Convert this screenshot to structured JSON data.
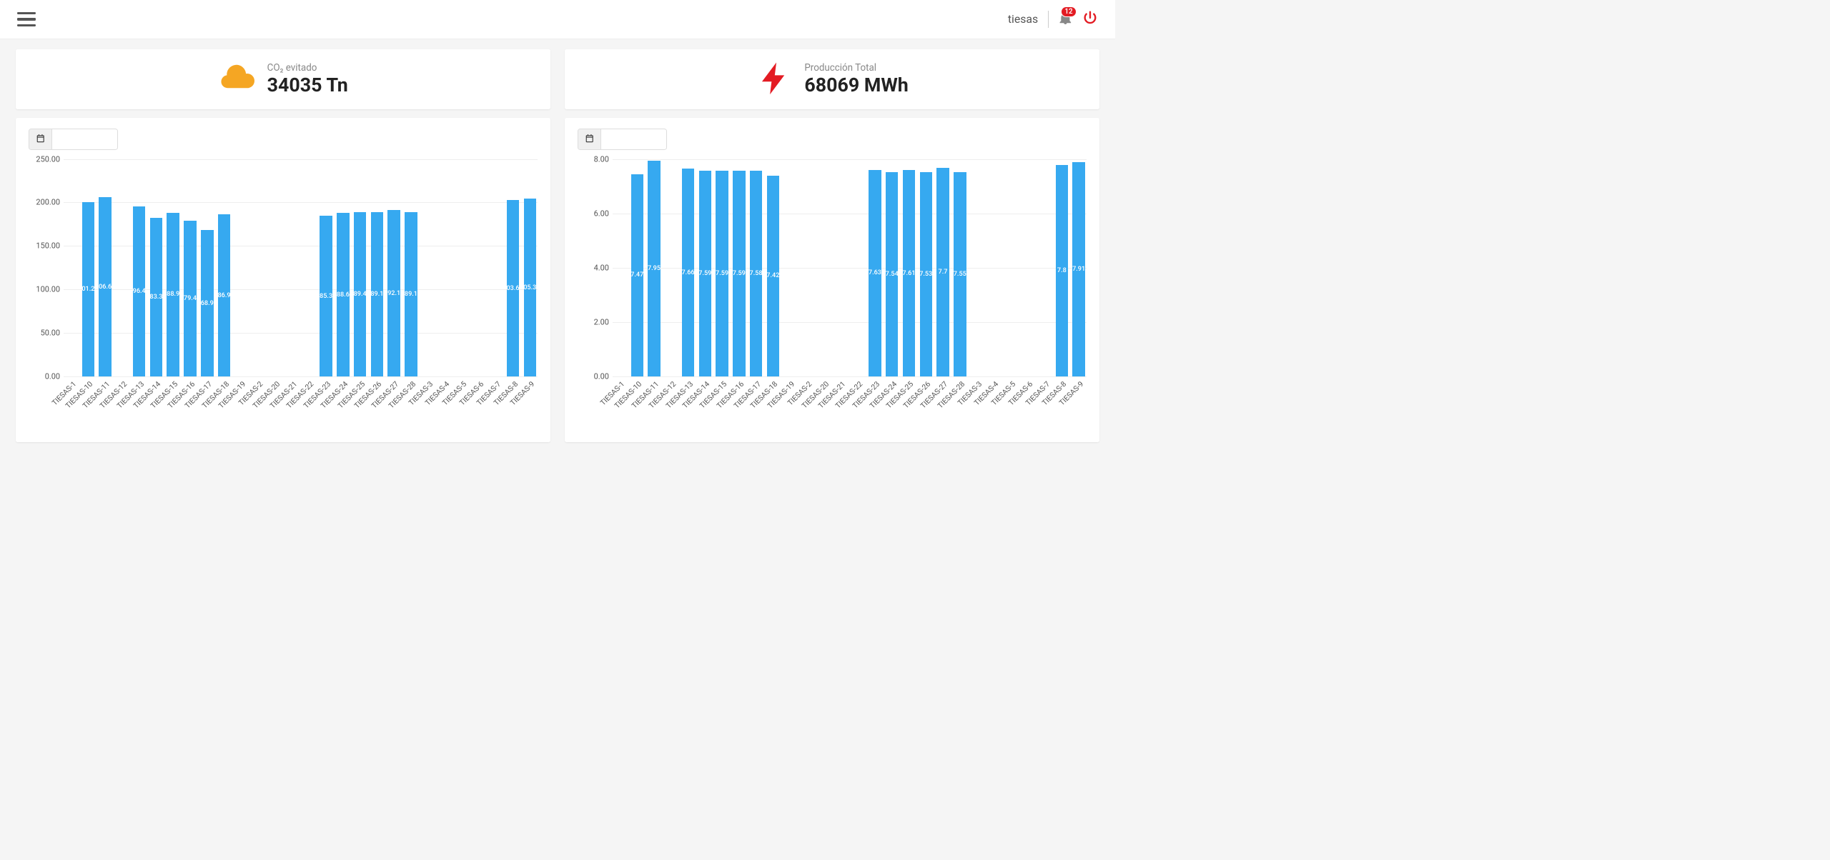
{
  "header": {
    "user_label": "tiesas",
    "notification_count": "12"
  },
  "kpi": {
    "co2": {
      "label": "CO₂ evitado",
      "value": "34035 Tn",
      "icon_color": "#f5a623"
    },
    "production": {
      "label": "Producción Total",
      "value": "68069 MWh",
      "icon_color": "#e31b23"
    }
  },
  "colors": {
    "bar": "#36a9f0",
    "grid": "#eeeeee",
    "text": "#555555",
    "bar_label": "#ffffff",
    "header_bg": "#ffffff",
    "page_bg": "#f5f5f5"
  },
  "chart_left": {
    "type": "bar",
    "ylim": [
      0,
      250
    ],
    "yticks": [
      0,
      50,
      100,
      150,
      200,
      250
    ],
    "ytick_labels": [
      "0.00",
      "50.00",
      "100.00",
      "150.00",
      "200.00",
      "250.00"
    ],
    "categories": [
      "TIESAS-1",
      "TIESAS-10",
      "TIESAS-11",
      "TIESAS-12",
      "TIESAS-13",
      "TIESAS-14",
      "TIESAS-15",
      "TIESAS-16",
      "TIESAS-17",
      "TIESAS-18",
      "TIESAS-19",
      "TIESAS-2",
      "TIESAS-20",
      "TIESAS-21",
      "TIESAS-22",
      "TIESAS-23",
      "TIESAS-24",
      "TIESAS-25",
      "TIESAS-26",
      "TIESAS-27",
      "TIESAS-28",
      "TIESAS-3",
      "TIESAS-4",
      "TIESAS-5",
      "TIESAS-6",
      "TIESAS-7",
      "TIESAS-8",
      "TIESAS-9"
    ],
    "values": [
      0,
      201.2,
      206.6,
      0,
      196.4,
      183.3,
      188.9,
      179.4,
      168.9,
      186.9,
      0,
      0,
      0,
      0,
      0,
      185.3,
      188.6,
      189.4,
      189.1,
      192.1,
      189.1,
      0,
      0,
      0,
      0,
      0,
      203.6,
      205.3
    ],
    "bar_labels": [
      null,
      "01.2",
      "06.6",
      null,
      "96.4",
      "83.3",
      "88.9",
      "79.4",
      "68.9",
      "86.9",
      null,
      null,
      null,
      null,
      null,
      "85.3",
      "88.6",
      "89.4",
      "89.1",
      "92.1",
      "89.1",
      null,
      null,
      null,
      null,
      null,
      "03.6",
      "05.3"
    ],
    "bar_width": 0.82
  },
  "chart_right": {
    "type": "bar",
    "ylim": [
      0,
      8
    ],
    "yticks": [
      0,
      2,
      4,
      6,
      8
    ],
    "ytick_labels": [
      "0.00",
      "2.00",
      "4.00",
      "6.00",
      "8.00"
    ],
    "categories": [
      "TIESAS-1",
      "TIESAS-10",
      "TIESAS-11",
      "TIESAS-12",
      "TIESAS-13",
      "TIESAS-14",
      "TIESAS-15",
      "TIESAS-16",
      "TIESAS-17",
      "TIESAS-18",
      "TIESAS-19",
      "TIESAS-2",
      "TIESAS-20",
      "TIESAS-21",
      "TIESAS-22",
      "TIESAS-23",
      "TIESAS-24",
      "TIESAS-25",
      "TIESAS-26",
      "TIESAS-27",
      "TIESAS-28",
      "TIESAS-3",
      "TIESAS-4",
      "TIESAS-5",
      "TIESAS-6",
      "TIESAS-7",
      "TIESAS-8",
      "TIESAS-9"
    ],
    "values": [
      0,
      7.47,
      7.95,
      0,
      7.66,
      7.59,
      7.59,
      7.59,
      7.58,
      7.42,
      0,
      0,
      0,
      0,
      0,
      7.63,
      7.54,
      7.61,
      7.53,
      7.7,
      7.55,
      0,
      0,
      0,
      0,
      0,
      7.8,
      7.91
    ],
    "bar_labels": [
      null,
      "7.47",
      "7.95",
      null,
      "7.66",
      "7.59",
      "7.59",
      "7.59",
      "7.58",
      "7.42",
      null,
      null,
      null,
      null,
      null,
      "7.63",
      "7.54",
      "7.61",
      "7.53",
      "7.7",
      "7.55",
      null,
      null,
      null,
      null,
      null,
      "7.8",
      "7.91"
    ],
    "bar_width": 0.82
  }
}
